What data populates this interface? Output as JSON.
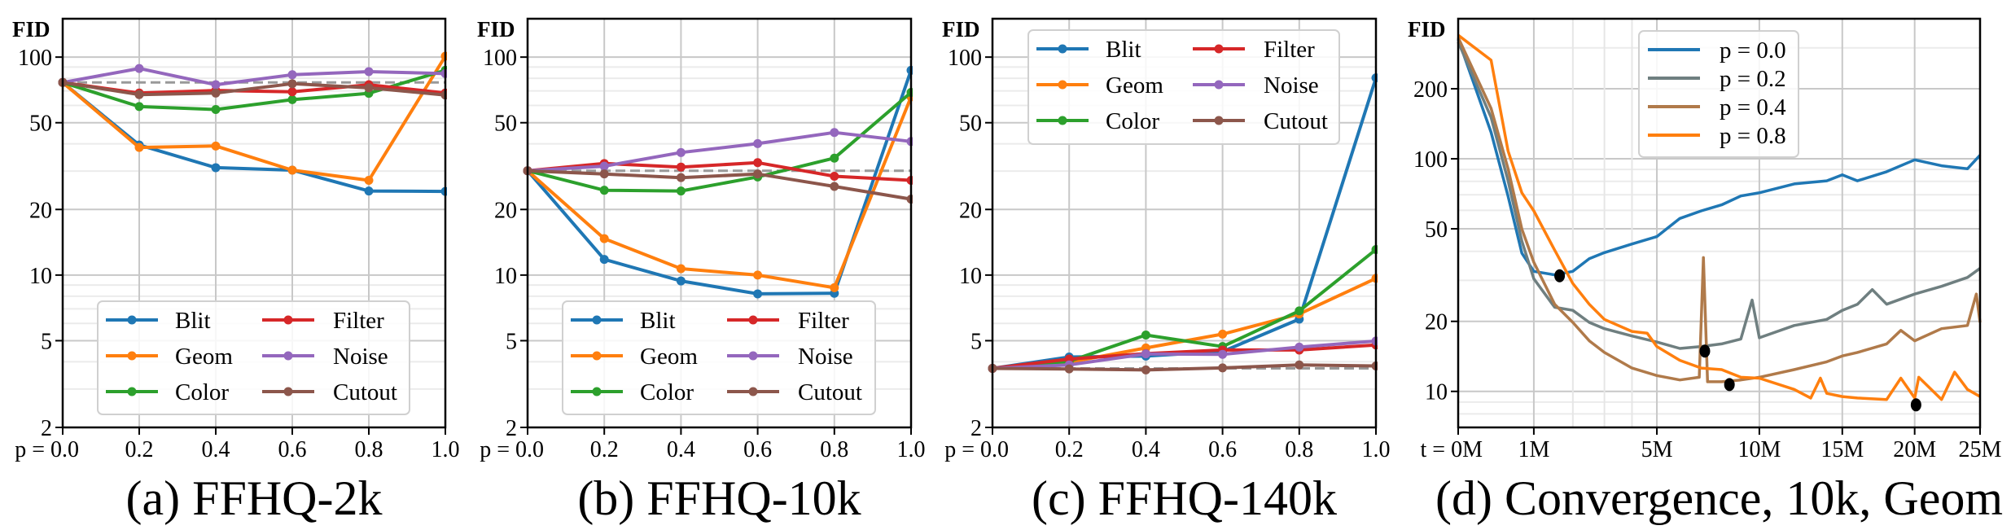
{
  "chart_data": [
    {
      "type": "line",
      "title": "(a) FFHQ-2k",
      "ylabel": "FID",
      "xlabel": "",
      "x": [
        0.0,
        0.2,
        0.4,
        0.6,
        0.8,
        1.0
      ],
      "x_tick_labels": [
        "p = 0.0",
        "0.2",
        "0.4",
        "0.6",
        "0.8",
        "1.0"
      ],
      "xlim": [
        0,
        1
      ],
      "y_scale": "log",
      "ylim": [
        2,
        150
      ],
      "y_ticks": [
        2,
        5,
        10,
        20,
        50,
        100
      ],
      "y_tick_labels": [
        "2",
        "5",
        "10",
        "20",
        "50",
        "100"
      ],
      "grid": true,
      "legend": "lower center",
      "baseline_dashed": 76.5,
      "series": [
        {
          "name": "Blit",
          "color": "#1f77b4",
          "values": [
            76.5,
            39.5,
            31.1,
            30.3,
            24.3,
            24.2
          ]
        },
        {
          "name": "Geom",
          "color": "#ff7f0e",
          "values": [
            76.5,
            38.5,
            39.1,
            30.3,
            27.2,
            101
          ]
        },
        {
          "name": "Color",
          "color": "#2ca02c",
          "values": [
            76.5,
            59.3,
            57.5,
            63.8,
            68.2,
            87
          ]
        },
        {
          "name": "Filter",
          "color": "#d62728",
          "values": [
            76.5,
            68.4,
            70.3,
            69.3,
            74.7,
            68.4
          ]
        },
        {
          "name": "Noise",
          "color": "#9467bd",
          "values": [
            76.5,
            88.7,
            74.7,
            83,
            85.8,
            84
          ]
        },
        {
          "name": "Cutout",
          "color": "#8c564b",
          "values": [
            76.5,
            67.3,
            68.4,
            75.5,
            72.3,
            67
          ]
        }
      ]
    },
    {
      "type": "line",
      "title": "(b) FFHQ-10k",
      "ylabel": "FID",
      "xlabel": "",
      "x": [
        0.0,
        0.2,
        0.4,
        0.6,
        0.8,
        1.0
      ],
      "x_tick_labels": [
        "p = 0.0",
        "0.2",
        "0.4",
        "0.6",
        "0.8",
        "1.0"
      ],
      "xlim": [
        0,
        1
      ],
      "y_scale": "log",
      "ylim": [
        2,
        150
      ],
      "y_ticks": [
        2,
        5,
        10,
        20,
        50,
        100
      ],
      "y_tick_labels": [
        "2",
        "5",
        "10",
        "20",
        "50",
        "100"
      ],
      "grid": true,
      "legend": "lower center",
      "baseline_dashed": 30.1,
      "series": [
        {
          "name": "Blit",
          "color": "#1f77b4",
          "values": [
            30.1,
            11.8,
            9.4,
            8.2,
            8.25,
            87
          ]
        },
        {
          "name": "Geom",
          "color": "#ff7f0e",
          "values": [
            30.1,
            14.7,
            10.7,
            10.0,
            8.75,
            65.7
          ]
        },
        {
          "name": "Color",
          "color": "#2ca02c",
          "values": [
            30.1,
            24.5,
            24.3,
            28.2,
            34.4,
            68.9
          ]
        },
        {
          "name": "Filter",
          "color": "#d62728",
          "values": [
            30.1,
            32.5,
            31.3,
            32.8,
            28.4,
            27.2
          ]
        },
        {
          "name": "Noise",
          "color": "#9467bd",
          "values": [
            30.1,
            31.6,
            36.5,
            40.1,
            45.1,
            41
          ]
        },
        {
          "name": "Cutout",
          "color": "#8c564b",
          "values": [
            30.1,
            29.1,
            28.0,
            29.1,
            25.5,
            22.3
          ]
        }
      ]
    },
    {
      "type": "line",
      "title": "(c) FFHQ-140k",
      "ylabel": "FID",
      "xlabel": "",
      "x": [
        0.0,
        0.2,
        0.4,
        0.6,
        0.8,
        1.0
      ],
      "x_tick_labels": [
        "p = 0.0",
        "0.2",
        "0.4",
        "0.6",
        "0.8",
        "1.0"
      ],
      "xlim": [
        0,
        1
      ],
      "y_scale": "log",
      "ylim": [
        2,
        150
      ],
      "y_ticks": [
        2,
        5,
        10,
        20,
        50,
        100
      ],
      "y_tick_labels": [
        "2",
        "5",
        "10",
        "20",
        "50",
        "100"
      ],
      "grid": true,
      "legend": "upper center",
      "baseline_dashed": 3.73,
      "series": [
        {
          "name": "Blit",
          "color": "#1f77b4",
          "values": [
            3.73,
            4.21,
            4.25,
            4.46,
            6.28,
            80.3
          ]
        },
        {
          "name": "Geom",
          "color": "#ff7f0e",
          "values": [
            3.73,
            3.98,
            4.63,
            5.36,
            6.63,
            9.66
          ]
        },
        {
          "name": "Color",
          "color": "#2ca02c",
          "values": [
            3.73,
            4.02,
            5.31,
            4.7,
            6.85,
            13.1
          ]
        },
        {
          "name": "Filter",
          "color": "#d62728",
          "values": [
            3.73,
            4.12,
            4.36,
            4.53,
            4.53,
            4.78
          ]
        },
        {
          "name": "Noise",
          "color": "#9467bd",
          "values": [
            3.73,
            3.87,
            4.35,
            4.33,
            4.67,
            4.98
          ]
        },
        {
          "name": "Cutout",
          "color": "#8c564b",
          "values": [
            3.73,
            3.71,
            3.67,
            3.75,
            3.87,
            3.83
          ]
        }
      ]
    },
    {
      "type": "line",
      "title": "(d) Convergence, 10k, Geom",
      "ylabel": "FID",
      "xlabel": "",
      "x_scale": "power 0.6",
      "xlim": [
        0,
        25
      ],
      "x_ticks": [
        0,
        1,
        5,
        10,
        15,
        20,
        25
      ],
      "x_tick_labels": [
        "t = 0M",
        "1M",
        "5M",
        "10M",
        "15M",
        "20M",
        "25M"
      ],
      "x_minor_ticks": [
        2,
        3,
        4
      ],
      "x_unit": "M",
      "y_scale": "log",
      "ylim": [
        7,
        400
      ],
      "y_ticks": [
        10,
        20,
        50,
        100,
        200
      ],
      "y_tick_labels": [
        "10",
        "20",
        "50",
        "100",
        "200"
      ],
      "grid": true,
      "legend": "upper center",
      "series": [
        {
          "name": "p = 0.0",
          "color": "#1f77b4",
          "points": [
            [
              0,
              327
            ],
            [
              0.25,
              130
            ],
            [
              0.5,
              69
            ],
            [
              0.75,
              39.3
            ],
            [
              1,
              32.8
            ],
            [
              1.5,
              31.7
            ],
            [
              2,
              32.8
            ],
            [
              2.5,
              37.2
            ],
            [
              3,
              39.5
            ],
            [
              4,
              43
            ],
            [
              5,
              46.3
            ],
            [
              6,
              55.4
            ],
            [
              7,
              59.7
            ],
            [
              8,
              63.4
            ],
            [
              9,
              69.2
            ],
            [
              10,
              71.4
            ],
            [
              12,
              78
            ],
            [
              14,
              80.4
            ],
            [
              15,
              85.3
            ],
            [
              16,
              80.4
            ],
            [
              18,
              88
            ],
            [
              20,
              99
            ],
            [
              22,
              93.3
            ],
            [
              24,
              90.6
            ],
            [
              25,
              103.6
            ]
          ]
        },
        {
          "name": "p = 0.2",
          "color": "#6f7f80",
          "points": [
            [
              0,
              318
            ],
            [
              0.25,
              150.6
            ],
            [
              0.5,
              80.4
            ],
            [
              0.75,
              44.3
            ],
            [
              1,
              30.5
            ],
            [
              1.5,
              23
            ],
            [
              2,
              22.3
            ],
            [
              2.5,
              19.8
            ],
            [
              3,
              18.6
            ],
            [
              4,
              17.3
            ],
            [
              5,
              16.3
            ],
            [
              6,
              15.3
            ],
            [
              7,
              15.6
            ],
            [
              8,
              16
            ],
            [
              9,
              16.8
            ],
            [
              9.6,
              24.7
            ],
            [
              10,
              17
            ],
            [
              12,
              19.2
            ],
            [
              14,
              20.4
            ],
            [
              15,
              22.3
            ],
            [
              16,
              23.7
            ],
            [
              17,
              27.4
            ],
            [
              18,
              23.7
            ],
            [
              20,
              26.2
            ],
            [
              22,
              28.3
            ],
            [
              24,
              30.9
            ],
            [
              25,
              33.8
            ]
          ]
        },
        {
          "name": "p = 0.4",
          "color": "#b07a4a",
          "points": [
            [
              0,
              332
            ],
            [
              0.25,
              164.7
            ],
            [
              0.5,
              90.6
            ],
            [
              0.75,
              49.9
            ],
            [
              1,
              35.9
            ],
            [
              1.5,
              23.7
            ],
            [
              2,
              19.8
            ],
            [
              2.5,
              16.5
            ],
            [
              3,
              14.7
            ],
            [
              4,
              12.6
            ],
            [
              5,
              11.7
            ],
            [
              6,
              11.2
            ],
            [
              6.9,
              11.5
            ],
            [
              7.1,
              37.6
            ],
            [
              7.3,
              11
            ],
            [
              8,
              11
            ],
            [
              9,
              11.2
            ],
            [
              10,
              11.5
            ],
            [
              12,
              12.4
            ],
            [
              14,
              13.4
            ],
            [
              15,
              14.2
            ],
            [
              16,
              14.7
            ],
            [
              18,
              16
            ],
            [
              19,
              18.3
            ],
            [
              20,
              16.5
            ],
            [
              22,
              18.6
            ],
            [
              24,
              19.2
            ],
            [
              24.7,
              26.2
            ],
            [
              25,
              19.8
            ]
          ]
        },
        {
          "name": "p = 0.8",
          "color": "#ff7f0e",
          "points": [
            [
              0,
              340
            ],
            [
              0.25,
              265.5
            ],
            [
              0.5,
              108
            ],
            [
              0.75,
              71.4
            ],
            [
              1,
              59.7
            ],
            [
              1.5,
              40.5
            ],
            [
              2,
              29.1
            ],
            [
              2.5,
              23.7
            ],
            [
              3,
              20.4
            ],
            [
              4,
              18.1
            ],
            [
              4.6,
              17.8
            ],
            [
              5,
              15.6
            ],
            [
              6,
              13.6
            ],
            [
              7,
              12.6
            ],
            [
              8,
              12.4
            ],
            [
              9,
              11.5
            ],
            [
              10,
              11.4
            ],
            [
              12,
              10.2
            ],
            [
              13,
              9.36
            ],
            [
              13.6,
              11.4
            ],
            [
              14,
              9.8
            ],
            [
              15,
              9.5
            ],
            [
              16,
              9.36
            ],
            [
              18,
              9.23
            ],
            [
              19,
              11.4
            ],
            [
              20,
              9.36
            ],
            [
              20.3,
              11.5
            ],
            [
              22,
              9.23
            ],
            [
              23,
              12.1
            ],
            [
              24,
              10.2
            ],
            [
              25,
              9.5
            ]
          ]
        }
      ],
      "minima_marker_color": "#000000",
      "minima": [
        [
          1.63,
          31.4
        ],
        [
          7.17,
          14.9
        ],
        [
          8.4,
          10.7
        ],
        [
          20.1,
          8.75
        ]
      ]
    }
  ]
}
